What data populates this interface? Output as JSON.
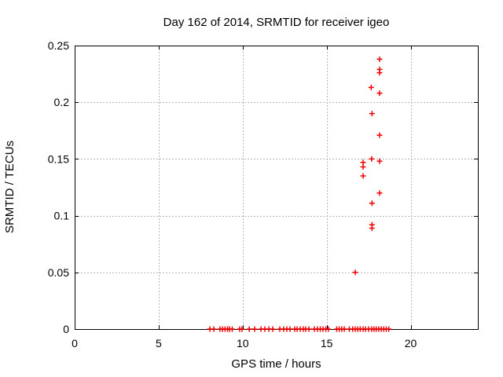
{
  "chart_data": {
    "type": "scatter",
    "title": "Day 162 of 2014, SRMTID for receiver igeo",
    "xlabel": "GPS time / hours",
    "ylabel": "SRMTID / TECUs",
    "xlim": [
      0,
      24
    ],
    "ylim": [
      0,
      0.25
    ],
    "xticks": [
      {
        "value": 0,
        "label": "0"
      },
      {
        "value": 5,
        "label": "5"
      },
      {
        "value": 10,
        "label": "10"
      },
      {
        "value": 15,
        "label": "15"
      },
      {
        "value": 20,
        "label": "20"
      }
    ],
    "yticks": [
      {
        "value": 0,
        "label": "0"
      },
      {
        "value": 0.05,
        "label": "0.05"
      },
      {
        "value": 0.1,
        "label": "0.1"
      },
      {
        "value": 0.15,
        "label": "0.15"
      },
      {
        "value": 0.2,
        "label": "0.2"
      },
      {
        "value": 0.25,
        "label": "0.25"
      }
    ],
    "grid": true,
    "legend": "none",
    "marker": {
      "shape": "plus",
      "size": 7,
      "color": "#ee0000"
    },
    "colors": {
      "background": "#ffffff",
      "border": "#000000",
      "grid": "#b4b4b4",
      "text": "#000000"
    },
    "series": [
      {
        "name": "SRMTID",
        "points": [
          [
            8.05,
            0
          ],
          [
            8.28,
            0
          ],
          [
            8.65,
            0
          ],
          [
            8.8,
            0
          ],
          [
            8.95,
            0
          ],
          [
            9.1,
            0
          ],
          [
            9.22,
            0
          ],
          [
            9.38,
            0
          ],
          [
            9.82,
            0
          ],
          [
            9.96,
            0
          ],
          [
            10.39,
            0
          ],
          [
            10.71,
            0
          ],
          [
            11.09,
            0
          ],
          [
            11.32,
            0
          ],
          [
            11.56,
            0
          ],
          [
            11.79,
            0
          ],
          [
            12.21,
            0
          ],
          [
            12.44,
            0
          ],
          [
            12.63,
            0
          ],
          [
            12.82,
            0
          ],
          [
            13.1,
            0
          ],
          [
            13.24,
            0
          ],
          [
            13.43,
            0
          ],
          [
            13.61,
            0
          ],
          [
            13.75,
            0
          ],
          [
            13.94,
            0
          ],
          [
            14.27,
            0
          ],
          [
            14.45,
            0
          ],
          [
            14.62,
            0
          ],
          [
            14.78,
            0
          ],
          [
            14.95,
            0
          ],
          [
            15.1,
            0
          ],
          [
            15.6,
            0
          ],
          [
            15.75,
            0
          ],
          [
            15.9,
            0
          ],
          [
            16.05,
            0
          ],
          [
            16.35,
            0
          ],
          [
            16.55,
            0
          ],
          [
            16.7,
            0
          ],
          [
            16.85,
            0
          ],
          [
            17.0,
            0
          ],
          [
            17.17,
            0
          ],
          [
            17.31,
            0
          ],
          [
            17.5,
            0
          ],
          [
            17.68,
            0
          ],
          [
            17.82,
            0
          ],
          [
            17.95,
            0
          ],
          [
            18.1,
            0
          ],
          [
            18.25,
            0
          ],
          [
            18.4,
            0
          ],
          [
            18.55,
            0
          ],
          [
            18.7,
            0
          ],
          [
            16.7,
            0.05
          ],
          [
            17.7,
            0.089
          ],
          [
            17.7,
            0.092
          ],
          [
            17.7,
            0.111
          ],
          [
            18.15,
            0.12
          ],
          [
            17.17,
            0.135
          ],
          [
            17.17,
            0.143
          ],
          [
            17.17,
            0.147
          ],
          [
            18.15,
            0.148
          ],
          [
            17.68,
            0.15
          ],
          [
            18.15,
            0.171
          ],
          [
            17.7,
            0.19
          ],
          [
            18.15,
            0.208
          ],
          [
            17.65,
            0.213
          ],
          [
            18.15,
            0.226
          ],
          [
            18.15,
            0.229
          ],
          [
            18.15,
            0.238
          ]
        ]
      }
    ]
  }
}
